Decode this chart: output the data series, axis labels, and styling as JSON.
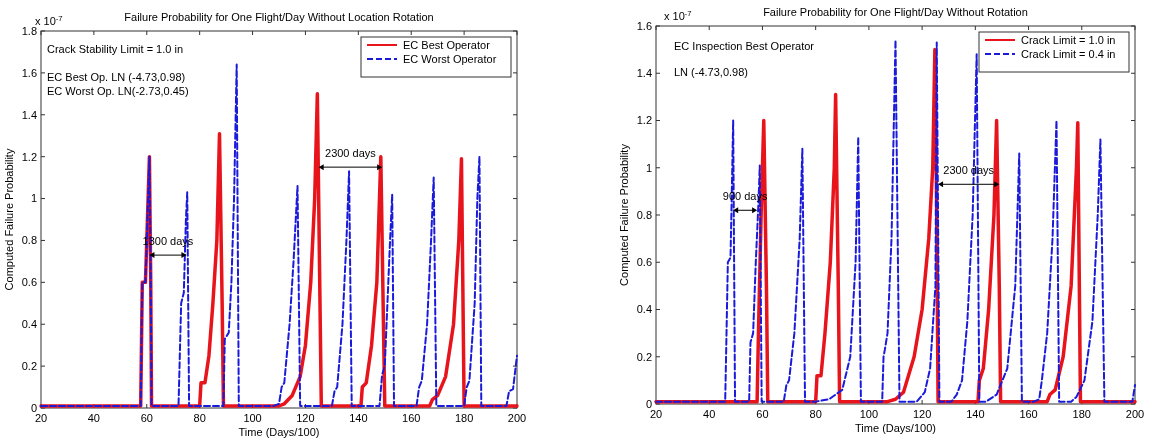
{
  "chart_data": [
    {
      "type": "line",
      "title": "Failure Probability for One Flight/Day Without Location Rotation",
      "xlabel": "Time (Days/100)",
      "ylabel": "Computed Failure Probability",
      "xlim": [
        20,
        200
      ],
      "xticks": [
        20,
        40,
        60,
        80,
        100,
        120,
        140,
        160,
        180,
        200
      ],
      "ylim": [
        0,
        1.8
      ],
      "yticks": [
        0,
        0.2,
        0.4,
        0.6,
        0.8,
        1,
        1.2,
        1.4,
        1.6,
        1.8
      ],
      "grid": false,
      "legend": "top right",
      "marker": "none",
      "annotations": [
        "x 10$^{-7}$",
        "Crack Stability Limit = 1.0 in",
        "EC Best Op. LN (-4.73,0.98)",
        "EC Worst Op. LN(-2.73,0.45)",
        {
          "text": "1300 days",
          "x": 61,
          "y": 0.73
        },
        {
          "text": "2300 days",
          "x": 125,
          "y": 1.15
        }
      ],
      "series": [
        {
          "name": "EC Best Operator",
          "color": "#e8141b",
          "line_style": "solid",
          "x": [
            20,
            57.7,
            58.3,
            59.5,
            60.5,
            61,
            61.5,
            61.8,
            80,
            80.5,
            82,
            83.5,
            85,
            86.5,
            87.5,
            88.5,
            89,
            110,
            112,
            115,
            118,
            120,
            122,
            123.5,
            124.5,
            125.5,
            126,
            141,
            141.5,
            143,
            145,
            147,
            148.5,
            149.5,
            150,
            167,
            168,
            170,
            173,
            176,
            178,
            179,
            180,
            200
          ],
          "values": [
            0.01,
            0.01,
            0.6,
            0.6,
            1.0,
            1.2,
            0.6,
            0.01,
            0.01,
            0.12,
            0.12,
            0.25,
            0.5,
            0.8,
            1.31,
            0.5,
            0.01,
            0.01,
            0.02,
            0.06,
            0.15,
            0.3,
            0.6,
            1.0,
            1.5,
            0.5,
            0.01,
            0.01,
            0.1,
            0.12,
            0.3,
            0.6,
            1.2,
            0.4,
            0.01,
            0.01,
            0.04,
            0.06,
            0.15,
            0.4,
            0.8,
            1.19,
            0.01,
            0.01
          ]
        },
        {
          "name": "EC Worst Operator",
          "color": "#1a1adb",
          "line_style": "dashed",
          "x": [
            20,
            57.7,
            58.3,
            59.5,
            60.5,
            61,
            61.5,
            61.8,
            72,
            73,
            74,
            74.8,
            75.3,
            76,
            89,
            89.5,
            91,
            92,
            93,
            94,
            94.8,
            108,
            110,
            111,
            112,
            114,
            115.5,
            117,
            118,
            130,
            131,
            132,
            134,
            135.5,
            136.5,
            137.5,
            148,
            149,
            150,
            151,
            152,
            152.8,
            153.5,
            162,
            163,
            164,
            166,
            167.5,
            168.5,
            169.5,
            180,
            181,
            182,
            184,
            185,
            185.8,
            186.5,
            196,
            197,
            198.5,
            200
          ],
          "values": [
            0.01,
            0.01,
            0.6,
            0.6,
            1.0,
            1.2,
            0.6,
            0.01,
            0.01,
            0.5,
            0.55,
            0.9,
            1.03,
            0.01,
            0.01,
            0.33,
            0.36,
            0.6,
            1.0,
            1.64,
            0.01,
            0.01,
            0.02,
            0.1,
            0.12,
            0.4,
            0.7,
            1.06,
            0.01,
            0.01,
            0.08,
            0.1,
            0.4,
            0.8,
            1.13,
            0.01,
            0.01,
            0.16,
            0.2,
            0.5,
            0.8,
            1.02,
            0.01,
            0.01,
            0.1,
            0.13,
            0.4,
            0.8,
            1.1,
            0.01,
            0.01,
            0.1,
            0.13,
            0.5,
            1.0,
            1.2,
            0.01,
            0.01,
            0.08,
            0.09,
            0.25
          ]
        }
      ]
    },
    {
      "type": "line",
      "title": "Failure Probability for One Flight/Day Without Rotation",
      "xlabel": "Time (Days/100)",
      "ylabel": "Computed Failure Probability",
      "xlim": [
        20,
        200
      ],
      "xticks": [
        20,
        40,
        60,
        80,
        100,
        120,
        140,
        160,
        180,
        200
      ],
      "ylim": [
        0,
        1.6
      ],
      "yticks": [
        0,
        0.2,
        0.4,
        0.6,
        0.8,
        1,
        1.2,
        1.4,
        1.6
      ],
      "grid": false,
      "legend": "top right",
      "marker": "none",
      "annotations": [
        "x 10$^{-7}$",
        "EC Inspection Best Operator",
        "LN (-4.73,0.98)",
        {
          "text": "900 days",
          "x": 49,
          "y": 0.82
        },
        {
          "text": "2300 days",
          "x": 126,
          "y": 0.93
        }
      ],
      "series": [
        {
          "name": "Crack Limit = 1.0 in",
          "color": "#e8141b",
          "line_style": "solid",
          "x": [
            20,
            58,
            58.5,
            59.5,
            60.5,
            61.5,
            62,
            80,
            80.5,
            82,
            83.5,
            85.5,
            87,
            87.5,
            88.5,
            89,
            107,
            110,
            113,
            117,
            120,
            122.5,
            124,
            124.8,
            125.5,
            126,
            141,
            141.5,
            143,
            145,
            147,
            148,
            149,
            149.5,
            167,
            168,
            170,
            173,
            176,
            178,
            178.5,
            179.5,
            200
          ],
          "values": [
            0.01,
            0.01,
            0.3,
            0.8,
            1.2,
            0.5,
            0.01,
            0.01,
            0.12,
            0.12,
            0.3,
            0.6,
            1.0,
            1.31,
            0.5,
            0.01,
            0.01,
            0.02,
            0.05,
            0.2,
            0.4,
            0.7,
            1.0,
            1.5,
            0.8,
            0.01,
            0.01,
            0.1,
            0.15,
            0.4,
            0.8,
            1.2,
            0.5,
            0.01,
            0.01,
            0.04,
            0.06,
            0.2,
            0.5,
            1.0,
            1.19,
            0.01,
            0.01
          ]
        },
        {
          "name": "Crack Limit = 0.4 in",
          "color": "#1a1adb",
          "line_style": "dashed",
          "x": [
            20,
            46,
            46.5,
            47,
            48,
            48.5,
            49,
            49.7,
            55,
            55.5,
            56.5,
            57.5,
            58.5,
            59,
            59.7,
            68,
            69,
            70,
            72,
            74,
            75,
            76,
            80,
            85,
            90,
            93,
            95,
            96,
            97,
            105,
            105.5,
            106,
            107,
            108.5,
            110,
            111.5,
            118,
            121,
            123,
            125,
            125.5,
            126.5,
            131,
            133,
            135,
            137,
            139,
            140.5,
            141.5,
            144,
            148,
            152,
            155,
            156.5,
            157.5,
            162,
            164,
            165,
            167,
            169,
            170.5,
            171.5,
            176,
            178,
            181,
            184,
            186,
            187,
            188.5,
            199,
            200
          ],
          "values": [
            0.01,
            0.01,
            0.3,
            0.6,
            0.62,
            0.9,
            1.2,
            0.01,
            0.01,
            0.26,
            0.3,
            0.6,
            0.85,
            1.01,
            0.01,
            0.01,
            0.08,
            0.1,
            0.3,
            0.7,
            1.08,
            0.01,
            0.01,
            0.02,
            0.06,
            0.2,
            0.6,
            1.13,
            0.01,
            0.01,
            0.2,
            0.23,
            0.3,
            0.7,
            1.54,
            0.01,
            0.01,
            0.05,
            0.15,
            0.5,
            1.53,
            0.01,
            0.01,
            0.04,
            0.1,
            0.35,
            0.8,
            1.48,
            0.01,
            0.01,
            0.04,
            0.15,
            0.5,
            1.06,
            0.01,
            0.01,
            0.02,
            0.1,
            0.3,
            0.7,
            1.2,
            0.01,
            0.01,
            0.03,
            0.1,
            0.35,
            0.8,
            1.12,
            0.01,
            0.01,
            0.08
          ]
        }
      ]
    }
  ]
}
